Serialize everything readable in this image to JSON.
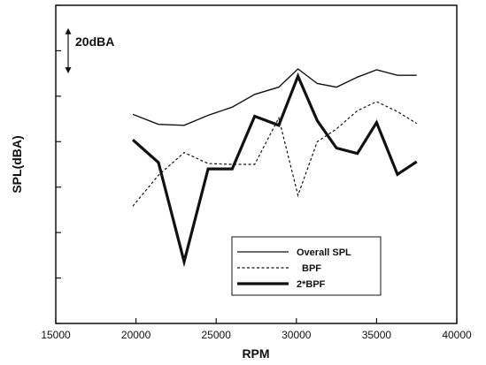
{
  "chart_data": {
    "type": "line",
    "xlabel": "RPM",
    "ylabel": "SPL(dBA)",
    "xlim": [
      15000,
      40000
    ],
    "x_ticks": [
      15000,
      20000,
      25000,
      30000,
      35000,
      40000
    ],
    "x_tick_labels": [
      "15000",
      "20000",
      "25000",
      "30000",
      "35000",
      "40000"
    ],
    "ylim": [
      0,
      35
    ],
    "y_ticks_unlabeled": [
      0,
      5,
      10,
      15,
      20,
      25,
      30,
      35
    ],
    "grid": false,
    "legend_position": "bottom-right",
    "annotation": {
      "text": "20dBA",
      "arrow_range": [
        27.5,
        32.5
      ]
    },
    "series": [
      {
        "name": "Overall SPL",
        "style": "solid-thin",
        "x": [
          19800,
          21400,
          23000,
          24500,
          26000,
          27400,
          28900,
          30100,
          31300,
          32500,
          33800,
          35000,
          36300,
          37500
        ],
        "y": [
          23.0,
          21.9,
          21.8,
          22.9,
          23.8,
          25.2,
          26.0,
          28.0,
          26.4,
          26.0,
          27.1,
          27.9,
          27.3,
          27.3
        ]
      },
      {
        "name": "BPF",
        "style": "dashed",
        "x": [
          19800,
          21400,
          23000,
          24500,
          26000,
          27400,
          28900,
          30100,
          31300,
          32500,
          33800,
          35000,
          36300,
          37500
        ],
        "y": [
          12.9,
          16.3,
          18.8,
          17.6,
          17.5,
          17.5,
          22.6,
          14.1,
          20.0,
          21.4,
          23.4,
          24.4,
          23.3,
          22.0
        ]
      },
      {
        "name": "2*BPF",
        "style": "solid-thick",
        "x": [
          19800,
          21400,
          23000,
          24500,
          26000,
          27400,
          28900,
          30100,
          31300,
          32500,
          33800,
          35000,
          36300,
          37500
        ],
        "y": [
          20.2,
          17.7,
          6.8,
          17.0,
          17.0,
          22.8,
          21.8,
          27.2,
          22.3,
          19.3,
          18.7,
          22.1,
          16.4,
          17.8
        ]
      }
    ]
  }
}
